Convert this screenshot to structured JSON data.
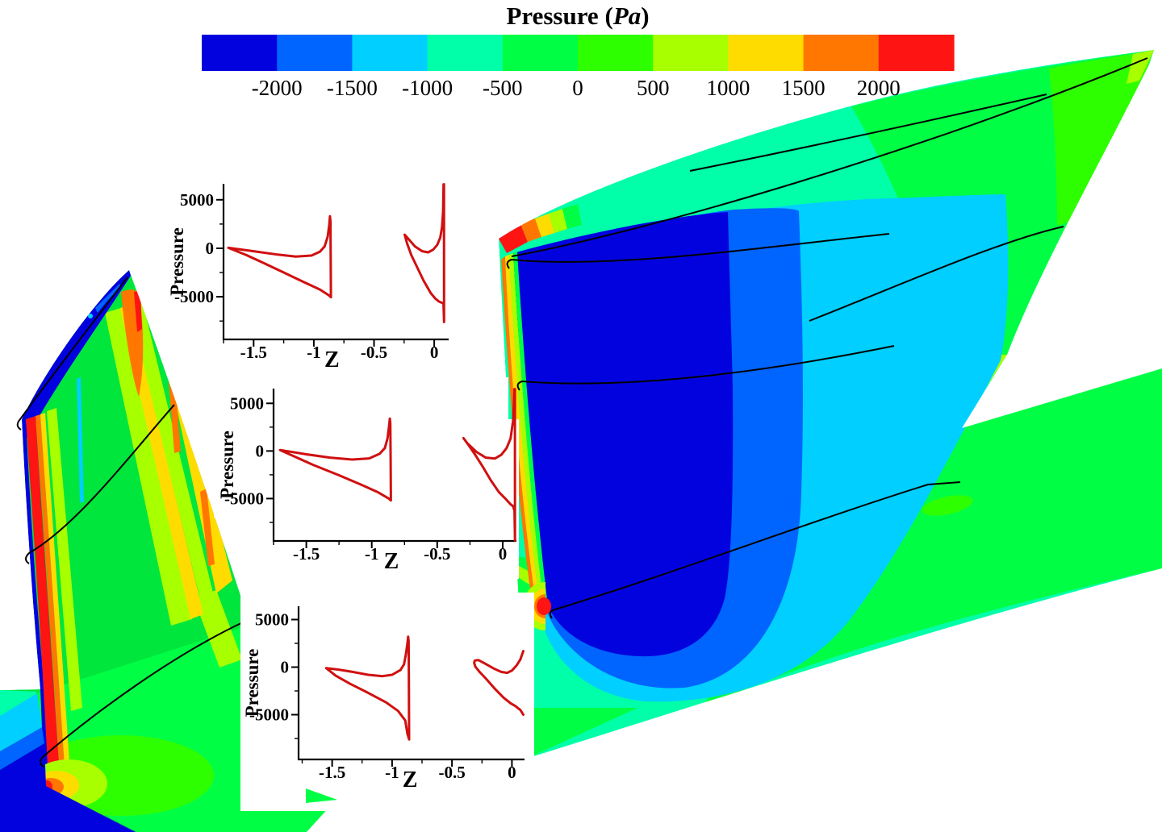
{
  "figure": {
    "background": "#ffffff"
  },
  "title": {
    "prefix": "Pressure (",
    "unit": "Pa",
    "suffix": ")"
  },
  "chart_data": [
    {
      "type": "contour",
      "role": "colorbar-legend",
      "title": "Pressure (Pa)",
      "levels": [
        -2000,
        -1500,
        -1000,
        -500,
        0,
        500,
        1000,
        1500,
        2000
      ],
      "level_labels": [
        "-2000",
        "-1500",
        "-1000",
        "-500",
        "0",
        "500",
        "1000",
        "1500",
        "2000"
      ],
      "colors": [
        "#0202DF",
        "#0064FF",
        "#00CFFF",
        "#00FFA8",
        "#00FF44",
        "#2EFF00",
        "#A8FF00",
        "#FFDC00",
        "#FF7700",
        "#FF1414"
      ],
      "legend_orientation": "horizontal"
    },
    {
      "type": "line",
      "id": "section-plot-tip",
      "xlabel": "Z",
      "ylabel": "Pressure",
      "curve_color": "#D01010",
      "xlim": [
        -1.75,
        0.12
      ],
      "ylim": [
        -9400,
        6650
      ],
      "xticks": [
        -1.5,
        -1,
        -0.5,
        0
      ],
      "xtick_labels": [
        "-1.5",
        "-1",
        "-0.5",
        "0"
      ],
      "xticks_minor": [
        -1.75,
        -1.25,
        -0.75,
        -0.25
      ],
      "yticks": [
        5000,
        0,
        -5000
      ],
      "ytick_labels": [
        "5000",
        "0",
        "-5000"
      ],
      "yticks_minor": [
        2500,
        -2500,
        -7500
      ],
      "grid": false,
      "series": [
        {
          "name": "blade-section-loop",
          "closed": true,
          "points": [
            [
              -1.71,
              50
            ],
            [
              -1.5,
              -300
            ],
            [
              -1.3,
              -650
            ],
            [
              -1.15,
              -850
            ],
            [
              -1.02,
              -750
            ],
            [
              -0.95,
              -350
            ],
            [
              -0.91,
              200
            ],
            [
              -0.885,
              1200
            ],
            [
              -0.872,
              2400
            ],
            [
              -0.866,
              3300
            ],
            [
              -0.862,
              2800
            ],
            [
              -0.86,
              -800
            ],
            [
              -0.858,
              -5050
            ],
            [
              -0.875,
              -4850
            ],
            [
              -0.95,
              -4250
            ],
            [
              -1.08,
              -3500
            ],
            [
              -1.25,
              -2500
            ],
            [
              -1.42,
              -1500
            ],
            [
              -1.56,
              -700
            ],
            [
              -1.71,
              50
            ]
          ]
        },
        {
          "name": "trailing-edge-loop",
          "closed": true,
          "points": [
            [
              -0.245,
              1400
            ],
            [
              -0.21,
              900
            ],
            [
              -0.16,
              200
            ],
            [
              -0.1,
              -300
            ],
            [
              -0.05,
              -420
            ],
            [
              -0.01,
              -150
            ],
            [
              0.025,
              350
            ],
            [
              0.05,
              1100
            ],
            [
              0.065,
              2200
            ],
            [
              0.074,
              3800
            ],
            [
              0.078,
              6600
            ],
            [
              0.081,
              6600
            ],
            [
              0.082,
              -7600
            ],
            [
              0.077,
              -5700
            ],
            [
              0.06,
              -5600
            ],
            [
              0.04,
              -5500
            ],
            [
              0.01,
              -5200
            ],
            [
              -0.03,
              -4600
            ],
            [
              -0.09,
              -3300
            ],
            [
              -0.14,
              -2000
            ],
            [
              -0.19,
              -700
            ],
            [
              -0.225,
              500
            ],
            [
              -0.245,
              1400
            ]
          ]
        }
      ]
    },
    {
      "type": "line",
      "id": "section-plot-mid",
      "xlabel": "Z",
      "ylabel": "Pressure",
      "curve_color": "#D01010",
      "xlim": [
        -1.75,
        0.105
      ],
      "ylim": [
        -9450,
        6550
      ],
      "xticks": [
        -1.5,
        -1,
        -0.5,
        0
      ],
      "xtick_labels": [
        "-1.5",
        "-1",
        "-0.5",
        "0"
      ],
      "xticks_minor": [
        -1.75,
        -1.25,
        -0.75,
        -0.25
      ],
      "yticks": [
        5000,
        0,
        -5000
      ],
      "ytick_labels": [
        "5000",
        "0",
        "-5000"
      ],
      "yticks_minor": [
        2500,
        -2500,
        -7500
      ],
      "grid": false,
      "series": [
        {
          "name": "blade-section-loop",
          "closed": true,
          "points": [
            [
              -1.7,
              100
            ],
            [
              -1.5,
              -350
            ],
            [
              -1.32,
              -700
            ],
            [
              -1.15,
              -900
            ],
            [
              -1.02,
              -780
            ],
            [
              -0.94,
              -300
            ],
            [
              -0.9,
              300
            ],
            [
              -0.88,
              1300
            ],
            [
              -0.868,
              2600
            ],
            [
              -0.862,
              3400
            ],
            [
              -0.858,
              2900
            ],
            [
              -0.856,
              -900
            ],
            [
              -0.854,
              -5200
            ],
            [
              -0.87,
              -5000
            ],
            [
              -0.95,
              -4350
            ],
            [
              -1.08,
              -3550
            ],
            [
              -1.25,
              -2550
            ],
            [
              -1.45,
              -1450
            ],
            [
              -1.58,
              -650
            ],
            [
              -1.7,
              100
            ]
          ]
        },
        {
          "name": "trailing-edge-loop",
          "closed": true,
          "points": [
            [
              -0.3,
              1350
            ],
            [
              -0.27,
              800
            ],
            [
              -0.2,
              -100
            ],
            [
              -0.13,
              -700
            ],
            [
              -0.06,
              -800
            ],
            [
              -0.01,
              -400
            ],
            [
              0.03,
              300
            ],
            [
              0.06,
              1300
            ],
            [
              0.08,
              3200
            ],
            [
              0.09,
              6500
            ],
            [
              0.093,
              6500
            ],
            [
              0.094,
              -9400
            ],
            [
              0.09,
              -6300
            ],
            [
              0.08,
              -5800
            ],
            [
              0.06,
              -5600
            ],
            [
              0.02,
              -5000
            ],
            [
              -0.03,
              -4300
            ],
            [
              -0.09,
              -3100
            ],
            [
              -0.15,
              -1700
            ],
            [
              -0.21,
              -400
            ],
            [
              -0.26,
              600
            ],
            [
              -0.3,
              1350
            ]
          ]
        }
      ]
    },
    {
      "type": "line",
      "id": "section-plot-hub",
      "xlabel": "Z",
      "ylabel": "Pressure",
      "curve_color": "#D01010",
      "xlim": [
        -1.78,
        0.105
      ],
      "ylim": [
        -9700,
        6400
      ],
      "xticks": [
        -1.5,
        -1,
        -0.5,
        0
      ],
      "xtick_labels": [
        "-1.5",
        "-1",
        "-0.5",
        "0"
      ],
      "xticks_minor": [
        -1.75,
        -1.25,
        -0.75,
        -0.25
      ],
      "yticks": [
        5000,
        0,
        -5000
      ],
      "ytick_labels": [
        "5000",
        "0",
        "-5000"
      ],
      "yticks_minor": [
        2500,
        -2500,
        -7500
      ],
      "grid": false,
      "series": [
        {
          "name": "blade-section-loop",
          "closed": true,
          "points": [
            [
              -1.55,
              -100
            ],
            [
              -1.45,
              -250
            ],
            [
              -1.33,
              -500
            ],
            [
              -1.2,
              -800
            ],
            [
              -1.08,
              -950
            ],
            [
              -1.0,
              -800
            ],
            [
              -0.93,
              -300
            ],
            [
              -0.9,
              300
            ],
            [
              -0.885,
              1300
            ],
            [
              -0.872,
              2500
            ],
            [
              -0.866,
              3200
            ],
            [
              -0.862,
              2700
            ],
            [
              -0.86,
              -1500
            ],
            [
              -0.858,
              -7600
            ],
            [
              -0.872,
              -7000
            ],
            [
              -0.89,
              -5600
            ],
            [
              -0.95,
              -4600
            ],
            [
              -1.05,
              -3700
            ],
            [
              -1.2,
              -2700
            ],
            [
              -1.35,
              -1750
            ],
            [
              -1.47,
              -900
            ],
            [
              -1.55,
              -100
            ]
          ]
        },
        {
          "name": "trailing-edge-upper",
          "closed": false,
          "points": [
            [
              -0.305,
              50
            ],
            [
              -0.315,
              450
            ],
            [
              -0.31,
              700
            ],
            [
              -0.28,
              750
            ],
            [
              -0.22,
              350
            ],
            [
              -0.15,
              -150
            ],
            [
              -0.09,
              -500
            ],
            [
              -0.04,
              -600
            ],
            [
              0.0,
              -350
            ],
            [
              0.04,
              200
            ],
            [
              0.07,
              800
            ],
            [
              0.095,
              1700
            ]
          ]
        },
        {
          "name": "trailing-edge-lower",
          "closed": false,
          "points": [
            [
              -0.305,
              50
            ],
            [
              -0.27,
              -500
            ],
            [
              -0.21,
              -1300
            ],
            [
              -0.14,
              -2300
            ],
            [
              -0.07,
              -3200
            ],
            [
              -0.01,
              -3800
            ],
            [
              0.03,
              -4100
            ],
            [
              0.05,
              -4300
            ],
            [
              0.07,
              -4500
            ],
            [
              0.095,
              -5000
            ]
          ]
        }
      ]
    }
  ]
}
